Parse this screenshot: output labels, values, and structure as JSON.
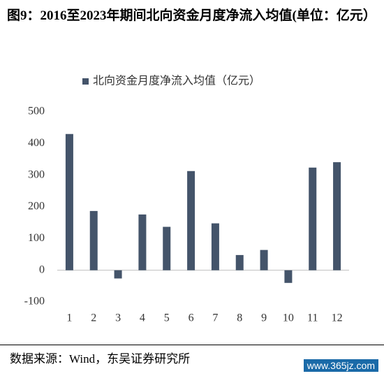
{
  "chart_data": {
    "type": "bar",
    "title": "图9：2016至2023年期间北向资金月度净流入均值(单位：亿元）",
    "categories": [
      "1",
      "2",
      "3",
      "4",
      "5",
      "6",
      "7",
      "8",
      "9",
      "10",
      "11",
      "12"
    ],
    "series": [
      {
        "name": "北向资金月度净流入均值（亿元）",
        "color": "#44546a",
        "values": [
          430,
          187,
          -26,
          176,
          137,
          313,
          148,
          48,
          64,
          -40,
          324,
          341
        ]
      }
    ],
    "ylim": [
      -100,
      500
    ],
    "yticks": [
      -100,
      0,
      100,
      200,
      300,
      400,
      500
    ],
    "grid": false,
    "source": "数据来源：Wind，东吴证券研究所",
    "watermark": "www.365jz.com"
  }
}
